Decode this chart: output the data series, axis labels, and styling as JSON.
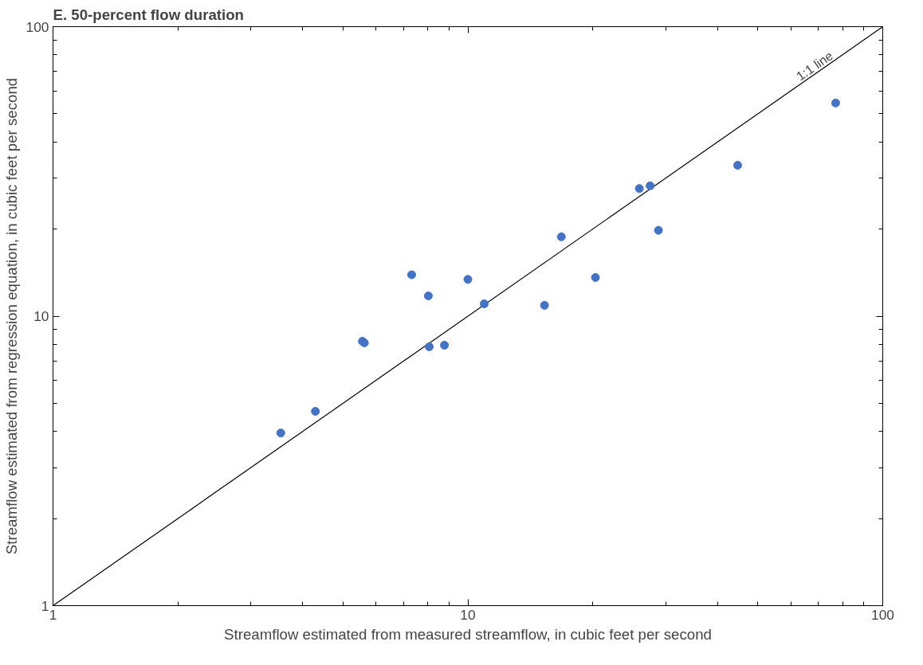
{
  "chart_data": {
    "type": "scatter",
    "title": "E. 50-percent flow duration",
    "xlabel": "Streamflow estimated from measured streamflow, in cubic feet per second",
    "ylabel": "Streamflow estimated from regression equation, in cubic feet per second",
    "log": "xy",
    "grid": false,
    "xlim": [
      1,
      100
    ],
    "ylim": [
      1,
      100
    ],
    "xticks": [
      1,
      {
        "value": 2,
        "label": null
      },
      {
        "value": 3,
        "label": null
      },
      {
        "value": 4,
        "label": null
      },
      {
        "value": 5,
        "label": null
      },
      {
        "value": 6,
        "label": null
      },
      {
        "value": 7,
        "label": null
      },
      {
        "value": 8,
        "label": null
      },
      {
        "value": 9,
        "label": null
      },
      10,
      {
        "value": 20,
        "label": null
      },
      {
        "value": 30,
        "label": null
      },
      {
        "value": 40,
        "label": null
      },
      {
        "value": 50,
        "label": null
      },
      {
        "value": 60,
        "label": null
      },
      {
        "value": 70,
        "label": null
      },
      {
        "value": 80,
        "label": null
      },
      {
        "value": 90,
        "label": null
      },
      100
    ],
    "yticks": [
      1,
      {
        "value": 2,
        "label": null
      },
      {
        "value": 3,
        "label": null
      },
      {
        "value": 4,
        "label": null
      },
      {
        "value": 5,
        "label": null
      },
      {
        "value": 6,
        "label": null
      },
      {
        "value": 7,
        "label": null
      },
      {
        "value": 8,
        "label": null
      },
      {
        "value": 9,
        "label": null
      },
      10,
      {
        "value": 20,
        "label": null
      },
      {
        "value": 30,
        "label": null
      },
      {
        "value": 40,
        "label": null
      },
      {
        "value": 50,
        "label": null
      },
      {
        "value": 60,
        "label": null
      },
      {
        "value": 70,
        "label": null
      },
      {
        "value": 80,
        "label": null
      },
      {
        "value": 90,
        "label": null
      },
      100
    ],
    "series": [
      {
        "type": "line",
        "color": "#000000",
        "x": [
          1,
          100
        ],
        "values": [
          1,
          100
        ]
      },
      {
        "marker": "circle",
        "color": "#4472c4",
        "x": [
          3.54,
          4.29,
          5.57,
          5.63,
          7.32,
          8.03,
          8.07,
          8.78,
          10.0,
          10.95,
          15.3,
          16.8,
          20.3,
          25.9,
          27.5,
          28.8,
          44.7,
          77.0
        ],
        "values": [
          3.95,
          4.69,
          8.19,
          8.09,
          13.9,
          11.75,
          7.84,
          7.94,
          13.4,
          11.03,
          10.9,
          18.8,
          13.6,
          27.6,
          28.2,
          19.8,
          33.2,
          54.5
        ]
      }
    ],
    "annotations": [
      {
        "text": "1:1 line",
        "x": 70,
        "y": 70
      }
    ]
  }
}
